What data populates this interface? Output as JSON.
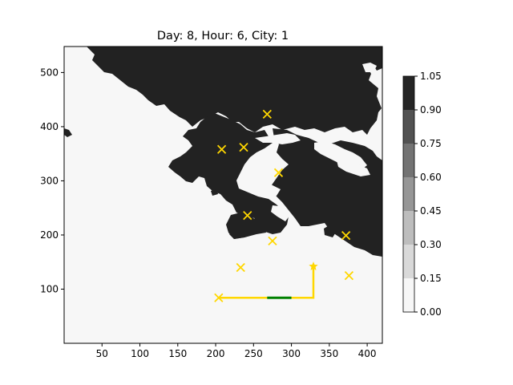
{
  "chart_data": {
    "type": "heatmap",
    "title": "Day: 8, Hour: 6, City: 1",
    "xlim": [
      0,
      420
    ],
    "ylim": [
      0,
      548
    ],
    "xticks": [
      50,
      100,
      150,
      200,
      250,
      300,
      350,
      400
    ],
    "yticks": [
      100,
      200,
      300,
      400,
      500
    ],
    "land_color": "#222222",
    "water_color": "#f7f7f7",
    "colorbar": {
      "levels": [
        0.0,
        0.15,
        0.3,
        0.45,
        0.6,
        0.75,
        0.9,
        1.05
      ],
      "tick_labels": [
        "0.00",
        "0.15",
        "0.30",
        "0.45",
        "0.60",
        "0.75",
        "0.90",
        "1.05"
      ],
      "colors": [
        "#f7f7f7",
        "#d9d9d9",
        "#bdbdbd",
        "#969696",
        "#737373",
        "#525252",
        "#252525"
      ]
    },
    "cities": [
      {
        "x": 268,
        "y": 423
      },
      {
        "x": 208,
        "y": 358
      },
      {
        "x": 237,
        "y": 362
      },
      {
        "x": 283,
        "y": 315
      },
      {
        "x": 242,
        "y": 236
      },
      {
        "x": 275,
        "y": 189
      },
      {
        "x": 372,
        "y": 199
      },
      {
        "x": 233,
        "y": 140
      },
      {
        "x": 376,
        "y": 125
      },
      {
        "x": 204,
        "y": 84
      }
    ],
    "marker_color": "#ffd700",
    "route": {
      "path": [
        [
          204,
          84
        ],
        [
          329,
          84
        ],
        [
          329,
          142
        ]
      ],
      "color": "#ffd700",
      "current_segment": {
        "x": [
          268,
          300
        ],
        "y": 84,
        "color": "#008000"
      },
      "target": {
        "x": 329,
        "y": 142,
        "marker": "star"
      }
    }
  }
}
